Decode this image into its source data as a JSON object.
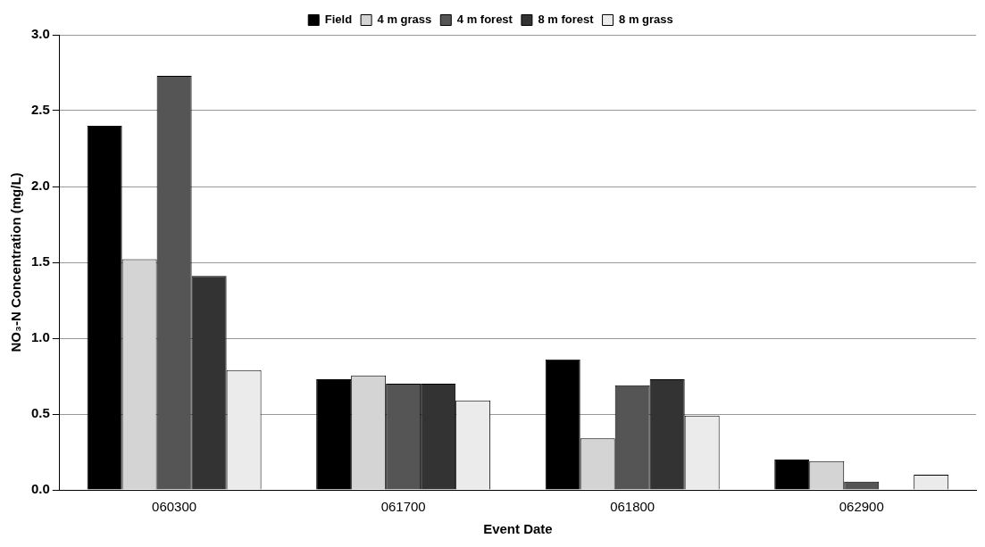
{
  "chart_data": {
    "type": "bar",
    "xlabel": "Event Date",
    "ylabel": "NO₃-N Concentration (mg/L)",
    "categories": [
      "060300",
      "061700",
      "061800",
      "062900"
    ],
    "series": [
      {
        "name": "Field",
        "color": "#000000",
        "values": [
          2.4,
          0.73,
          0.86,
          0.2
        ]
      },
      {
        "name": "4 m grass",
        "color": "#d4d4d4",
        "values": [
          1.52,
          0.755,
          0.34,
          0.19
        ]
      },
      {
        "name": "4 m forest",
        "color": "#555555",
        "values": [
          2.73,
          0.7,
          0.69,
          0.055
        ]
      },
      {
        "name": "8 m forest",
        "color": "#333333",
        "values": [
          1.41,
          0.7,
          0.73,
          null
        ]
      },
      {
        "name": "8 m grass",
        "color": "#ebebeb",
        "values": [
          0.79,
          0.59,
          0.49,
          0.1
        ]
      }
    ],
    "ylim": [
      0,
      3
    ],
    "yticks": [
      {
        "value": 0,
        "label": "0.0"
      },
      {
        "value": 0.5,
        "label": "0.5"
      },
      {
        "value": 1,
        "label": "1.0"
      },
      {
        "value": 1.5,
        "label": "1.5"
      },
      {
        "value": 2,
        "label": "2.0"
      },
      {
        "value": 2.5,
        "label": "2.5"
      },
      {
        "value": 3,
        "label": "3.0"
      }
    ],
    "grid": "y",
    "legend": "top"
  }
}
